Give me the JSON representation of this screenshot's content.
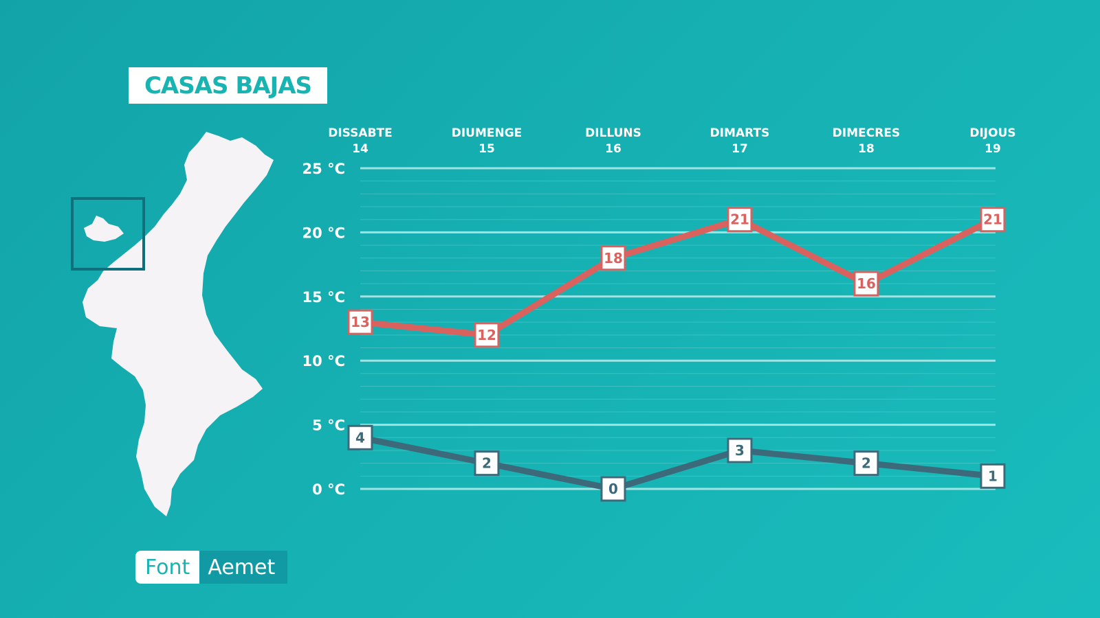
{
  "location": "CASAS BAJAS",
  "source": {
    "label": "Font",
    "value": "Aemet"
  },
  "colors": {
    "background": "#16b0b2",
    "max_series": "#d9625f",
    "min_series": "#3d6a7a",
    "grid": "#b8ecec",
    "map_fill": "#f6f3f6"
  },
  "map": {
    "region": "Comunitat Valenciana",
    "highlight": "location-box"
  },
  "chart_data": {
    "type": "line",
    "categories": [
      "DISSABTE 14",
      "DIUMENGE 15",
      "DILLUNS 16",
      "DIMARTS 17",
      "DIMECRES 18",
      "DIJOUS 19"
    ],
    "day_names": [
      "DISSABTE",
      "DIUMENGE",
      "DILLUNS",
      "DIMARTS",
      "DIMECRES",
      "DIJOUS"
    ],
    "day_numbers": [
      "14",
      "15",
      "16",
      "17",
      "18",
      "19"
    ],
    "series": [
      {
        "values": [
          13,
          12,
          18,
          21,
          16,
          21
        ]
      },
      {
        "values": [
          4,
          2,
          0,
          3,
          2,
          1
        ]
      }
    ],
    "yticks": [
      25,
      20,
      15,
      10,
      5,
      0
    ],
    "ytick_labels": [
      "25 °C",
      "20 °C",
      "15 °C",
      "10 °C",
      "5 °C",
      "0 °C"
    ],
    "ylim": [
      0,
      25
    ],
    "grid": true,
    "title": "",
    "xlabel": "",
    "ylabel": ""
  }
}
